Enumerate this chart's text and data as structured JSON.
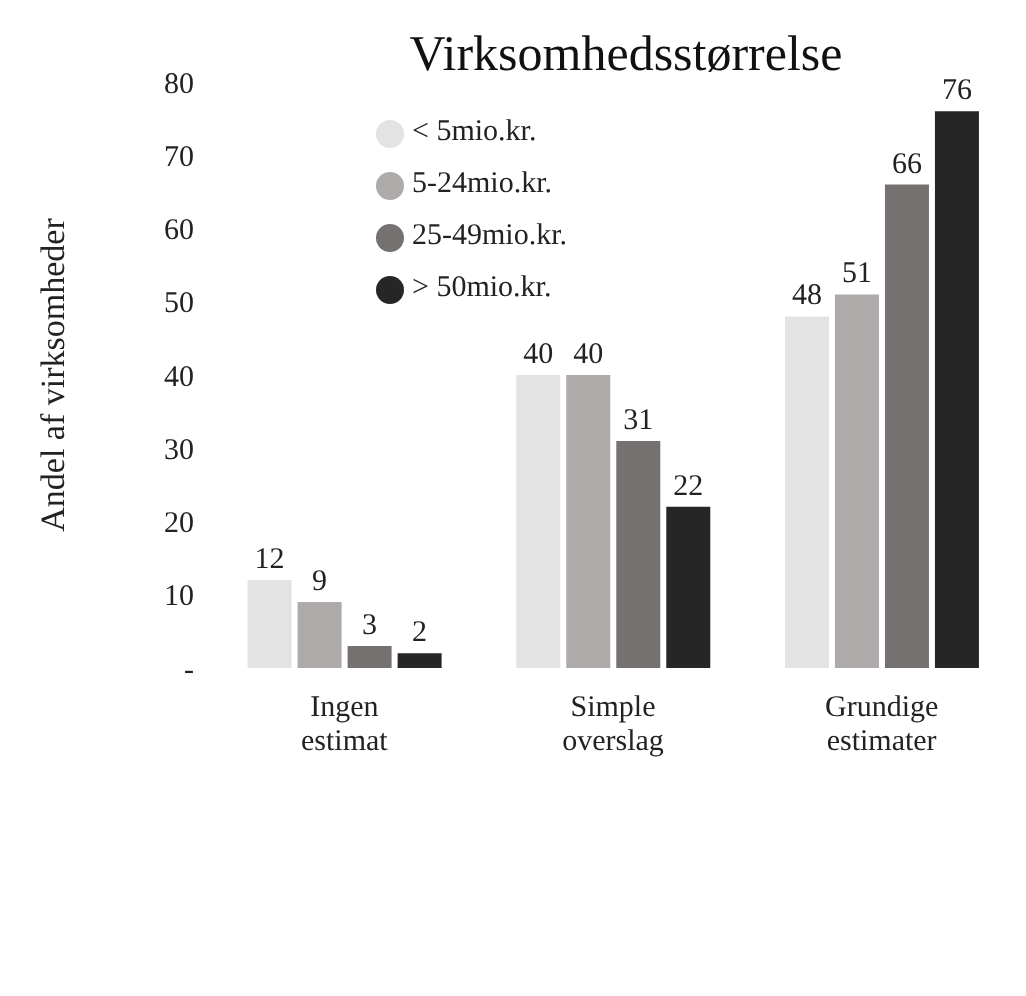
{
  "chart_data": {
    "type": "bar",
    "title": "Virksomhedsstørrelse",
    "ylabel": "Andel af virksomheder",
    "categories": [
      "Ingen estimat",
      "Simple overslag",
      "Grundige estimater"
    ],
    "series": [
      {
        "name": "< 5mio.kr.",
        "color": "#e3e3e3",
        "values": [
          12,
          40,
          48
        ]
      },
      {
        "name": "5-24mio.kr.",
        "color": "#aeaaaa",
        "values": [
          9,
          40,
          51
        ]
      },
      {
        "name": "25-49mio.kr.",
        "color": "#767171",
        "values": [
          3,
          31,
          66
        ]
      },
      {
        "name": "> 50mio.kr.",
        "color": "#262626",
        "values": [
          2,
          22,
          76
        ]
      }
    ],
    "ylim": [
      0,
      80
    ],
    "yticks": [
      {
        "value": 0,
        "label": "-"
      },
      10,
      20,
      30,
      40,
      50,
      60,
      70,
      80
    ],
    "data_labels": true,
    "legend": "top left",
    "grid": false
  }
}
